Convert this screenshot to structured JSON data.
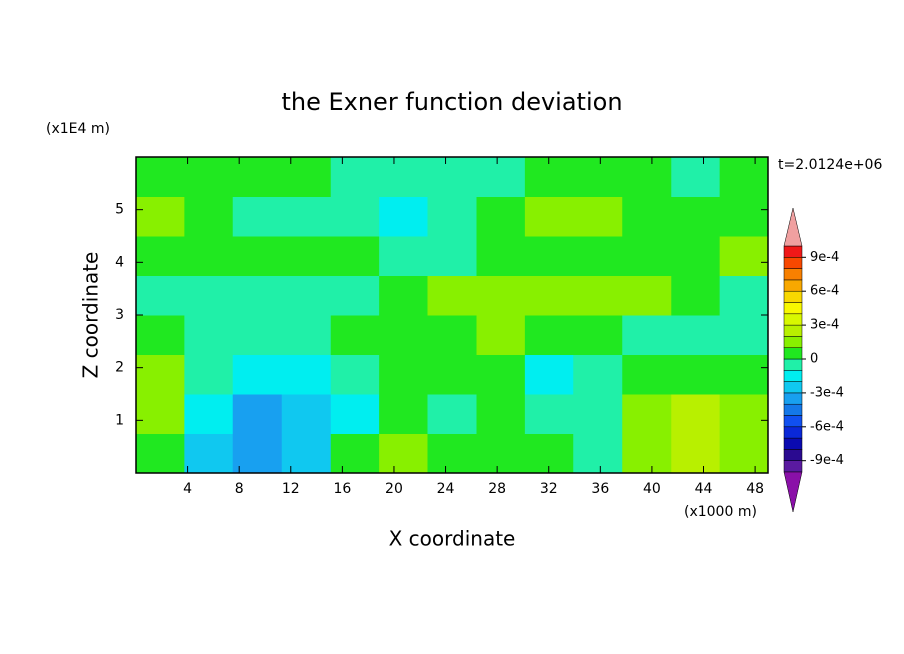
{
  "chart_data": {
    "type": "contour",
    "title": "the Exner function deviation",
    "xlabel": "X coordinate",
    "ylabel": "Z coordinate",
    "x_unit": "(x1000 m)",
    "y_unit": "(x1E4 m)",
    "annotation": "t=2.0124e+06",
    "xlim": [
      0,
      49
    ],
    "ylim": [
      0,
      6
    ],
    "xticks": [
      4,
      8,
      12,
      16,
      20,
      24,
      28,
      32,
      36,
      40,
      44,
      48
    ],
    "yticks": [
      1,
      2,
      3,
      4,
      5
    ],
    "x": [
      1.9,
      5.6,
      9.4,
      13.2,
      17,
      20.7,
      24.5,
      28.3,
      32,
      35.8,
      39.6,
      43.4,
      47.1
    ],
    "y": [
      0.375,
      1.125,
      1.875,
      2.625,
      3.375,
      4.125,
      4.875,
      5.625
    ],
    "z": [
      [
        5e-05,
        -0.00025,
        -0.00035,
        -0.00025,
        5e-05,
        0.00015,
        5e-05,
        5e-05,
        5e-05,
        -5e-05,
        0.00015,
        0.00025,
        0.00015
      ],
      [
        0.00015,
        -0.00015,
        -0.00035,
        -0.00025,
        -0.00015,
        5e-05,
        -5e-05,
        5e-05,
        -5e-05,
        -5e-05,
        0.00015,
        0.00025,
        0.00015
      ],
      [
        0.00015,
        -5e-05,
        -0.00015,
        -0.00015,
        -5e-05,
        5e-05,
        5e-05,
        5e-05,
        -0.00015,
        -5e-05,
        5e-05,
        5e-05,
        5e-05
      ],
      [
        5e-05,
        -5e-05,
        -5e-05,
        -5e-05,
        5e-05,
        5e-05,
        5e-05,
        0.00015,
        5e-05,
        5e-05,
        -5e-05,
        -5e-05,
        -5e-05
      ],
      [
        -5e-05,
        -5e-05,
        -5e-05,
        -5e-05,
        -5e-05,
        5e-05,
        0.00015,
        0.00015,
        0.00015,
        0.00015,
        0.00015,
        5e-05,
        -5e-05
      ],
      [
        5e-05,
        5e-05,
        5e-05,
        5e-05,
        5e-05,
        -5e-05,
        -5e-05,
        5e-05,
        5e-05,
        5e-05,
        5e-05,
        5e-05,
        0.00015
      ],
      [
        0.00015,
        5e-05,
        -5e-05,
        -5e-05,
        -5e-05,
        -0.00015,
        -5e-05,
        5e-05,
        0.00015,
        0.00015,
        5e-05,
        5e-05,
        5e-05
      ],
      [
        5e-05,
        5e-05,
        5e-05,
        5e-05,
        -5e-05,
        -5e-05,
        -5e-05,
        -5e-05,
        5e-05,
        5e-05,
        5e-05,
        -5e-05,
        5e-05
      ]
    ],
    "levels": [
      -0.001,
      -0.0009,
      -0.0008,
      -0.0007,
      -0.0006,
      -0.0005,
      -0.0004,
      -0.0003,
      -0.0002,
      -0.0001,
      0,
      0.0001,
      0.0002,
      0.0003,
      0.0004,
      0.0005,
      0.0006,
      0.0007,
      0.0008,
      0.0009,
      0.001
    ],
    "colors": [
      "#5a1aa0",
      "#2a0a90",
      "#0a0ab0",
      "#0a28d8",
      "#1050f0",
      "#1478e8",
      "#18a0f0",
      "#10c8f0",
      "#00eef0",
      "#20f0a8",
      "#20e820",
      "#88f000",
      "#b8f000",
      "#d8f800",
      "#f8f800",
      "#f8d800",
      "#f8a800",
      "#f88000",
      "#f84800",
      "#f01818"
    ],
    "extend_colors": [
      "#8a10a8",
      "#f0a0a0"
    ],
    "cbar_ticks": [
      {
        "value": 0.0009,
        "label": "9e-4"
      },
      {
        "value": 0.0006,
        "label": "6e-4"
      },
      {
        "value": 0.0003,
        "label": "3e-4"
      },
      0,
      {
        "value": -0.0003,
        "label": "-3e-4"
      },
      {
        "value": -0.0006,
        "label": "-6e-4"
      },
      {
        "value": -0.0009,
        "label": "-9e-4"
      }
    ]
  }
}
